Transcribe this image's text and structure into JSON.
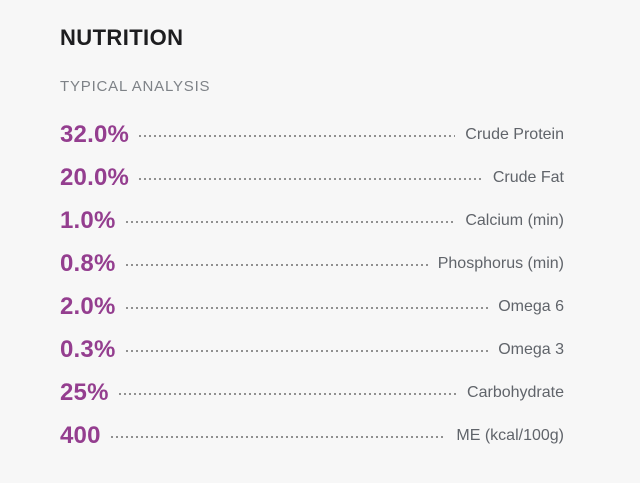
{
  "page": {
    "background_color": "#f7f7f7"
  },
  "section": {
    "title": "NUTRITION",
    "subtitle": "TYPICAL ANALYSIS",
    "colors": {
      "title": "#1d1d1f",
      "subtitle": "#7e8287",
      "value_accent": "#943e8f",
      "label": "#60646a",
      "leader_dashes": "#909090"
    },
    "rows": [
      {
        "value": "32.0%",
        "label": "Crude Protein"
      },
      {
        "value": "20.0%",
        "label": "Crude Fat"
      },
      {
        "value": "1.0%",
        "label": "Calcium (min)"
      },
      {
        "value": "0.8%",
        "label": "Phosphorus (min)"
      },
      {
        "value": "2.0%",
        "label": "Omega 6"
      },
      {
        "value": "0.3%",
        "label": "Omega 3"
      },
      {
        "value": "25%",
        "label": "Carbohydrate"
      },
      {
        "value": "400",
        "label": "ME (kcal/100g)"
      }
    ]
  }
}
